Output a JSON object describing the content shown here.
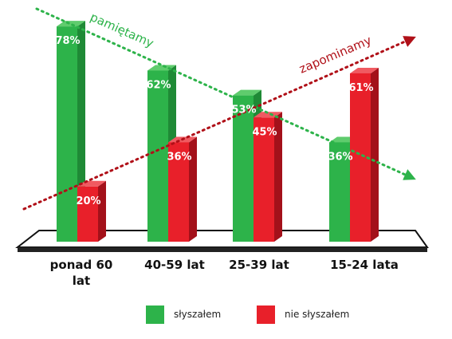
{
  "chart_data": {
    "type": "bar",
    "categories": [
      "ponad 60\nlat",
      "40-59 lat",
      "25-39 lat",
      "15-24 lata"
    ],
    "series": [
      {
        "name": "słyszałem",
        "values": [
          78,
          62,
          53,
          36
        ],
        "color": "#2db34a"
      },
      {
        "name": "nie słyszałem",
        "values": [
          20,
          36,
          45,
          61
        ],
        "color": "#e8202a"
      }
    ],
    "value_labels": [
      [
        "78%",
        "62%",
        "53%",
        "36%"
      ],
      [
        "20%",
        "36%",
        "45%",
        "61%"
      ]
    ],
    "annotations": [
      {
        "text": "pamiętamy",
        "color": "#2db34a",
        "line": "dotted arrow, descending"
      },
      {
        "text": "zapominamy",
        "color": "#b01018",
        "line": "dotted arrow, ascending"
      }
    ],
    "ylim": [
      0,
      100
    ],
    "legend": "bottom",
    "three_d": true
  }
}
